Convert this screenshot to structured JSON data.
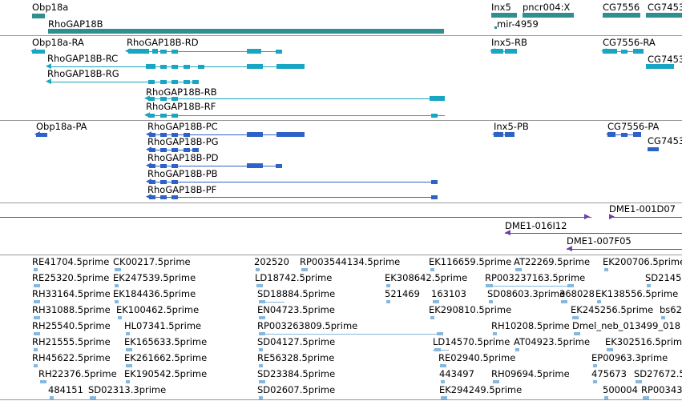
{
  "colors": {
    "gene": "#2f8e8e",
    "rna": "#19a6c2",
    "protein": "#2f62c6",
    "contig": "#6a3fa6",
    "est": "#86b7dc"
  },
  "tracks": {
    "gene": {
      "labels": [
        "Obp18a",
        "RhoGAP18B",
        "Inx5",
        "pncr004:X",
        "mir-4959",
        "CG7556",
        "CG7453"
      ]
    },
    "rna": {
      "labels": [
        "Obp18a-RA",
        "RhoGAP18B-RD",
        "RhoGAP18B-RC",
        "RhoGAP18B-RG",
        "RhoGAP18B-RB",
        "RhoGAP18B-RF",
        "Inx5-RB",
        "CG7556-RA",
        "CG7453"
      ]
    },
    "protein": {
      "labels": [
        "Obp18a-PA",
        "RhoGAP18B-PC",
        "RhoGAP18B-PG",
        "RhoGAP18B-PD",
        "RhoGAP18B-PB",
        "RhoGAP18B-PF",
        "Inx5-PB",
        "CG7556-PA",
        "CG7453"
      ]
    },
    "contig": {
      "labels": [
        "DME1-001D07",
        "DME1-016I12",
        "DME1-007F05"
      ]
    },
    "est": {
      "labels": [
        "RE41704.5prime",
        "CK00217.5prime",
        "202520",
        "RP003544134.5prime",
        "EK116659.5prime",
        "AT22269.5prime",
        "EK200706.5prime",
        "RE25320.5prime",
        "EK247539.5prime",
        "LD18742.5prime",
        "EK308642.5prime",
        "RP003237163.5prime",
        "SD2145",
        "RH33164.5prime",
        "EK184436.5prime",
        "SD18884.5prime",
        "521469",
        "163103",
        "SD08603.3prime",
        "368028",
        "EK138556.5prime",
        "RH31088.5prime",
        "EK100462.5prime",
        "EN04723.5prime",
        "EK290810.5prime",
        "EK245256.5prime",
        "bs62",
        "RH25540.5prime",
        "HL07341.5prime",
        "RP003263809.5prime",
        "RH10208.5prime",
        "Dmel_neb_013499_018",
        "RH21555.5prime",
        "EK165633.5prime",
        "SD04127.5prime",
        "LD14570.5prime",
        "AT04923.5prime",
        "EK302516.5prime",
        "RH45622.5prime",
        "EK261662.5prime",
        "RE56328.5prime",
        "RE02940.5prime",
        "EP00963.3prime",
        "RH22376.5prime",
        "EK190542.5prime",
        "SD23384.5prime",
        "443497",
        "RH09694.5prime",
        "475673",
        "SD27672.5",
        "484151",
        "SD02313.3prime",
        "SD02607.5prime",
        "EK294249.5prime",
        "500004",
        "RP00343"
      ]
    }
  }
}
